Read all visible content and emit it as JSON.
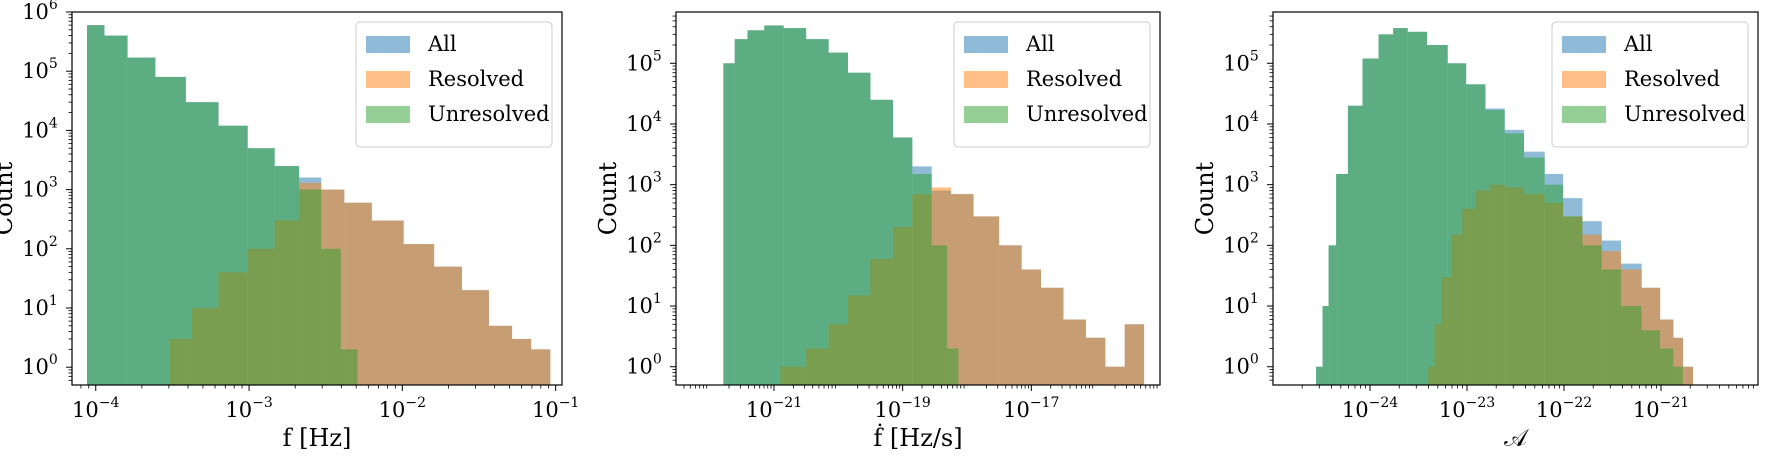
{
  "legend_labels": [
    "All",
    "Resolved",
    "Unresolved"
  ],
  "colors": {
    "All": "#1f77b4",
    "Resolved": "#ff7f0e",
    "Unresolved": "#2ca02c",
    "alpha": 0.5
  },
  "chart_data": [
    {
      "type": "histogram",
      "xscale": "log",
      "yscale": "log",
      "xlabel": "f [Hz]",
      "ylabel": "Count",
      "xlim": [
        7e-05,
        0.11
      ],
      "ylim": [
        0.5,
        1000000
      ],
      "xticks": [
        {
          "v": 0.0001,
          "label": "10",
          "exp": "−4"
        },
        {
          "v": 0.001,
          "label": "10",
          "exp": "−3"
        },
        {
          "v": 0.01,
          "label": "10",
          "exp": "−2"
        },
        {
          "v": 0.1,
          "label": "10",
          "exp": "−1"
        }
      ],
      "yticks": [
        {
          "v": 1,
          "label": "10",
          "exp": "0"
        },
        {
          "v": 10,
          "label": "10",
          "exp": "1"
        },
        {
          "v": 100,
          "label": "10",
          "exp": "2"
        },
        {
          "v": 1000,
          "label": "10",
          "exp": "3"
        },
        {
          "v": 10000,
          "label": "10",
          "exp": "4"
        },
        {
          "v": 100000,
          "label": "10",
          "exp": "5"
        },
        {
          "v": 1000000,
          "label": "10",
          "exp": "6"
        }
      ],
      "legend_position": "top-right",
      "series": [
        {
          "name": "All",
          "x": [
            0.0001,
            0.00013,
            0.0002,
            0.0003,
            0.0005,
            0.0008,
            0.0012,
            0.0018,
            0.0025,
            0.0035,
            0.005,
            0.008,
            0.013,
            0.02,
            0.03,
            0.045,
            0.06,
            0.08
          ],
          "values": [
            600000,
            400000,
            170000,
            80000,
            30000,
            12000,
            5000,
            2500,
            1600,
            1000,
            600,
            300,
            120,
            50,
            20,
            5,
            3,
            2
          ]
        },
        {
          "name": "Resolved",
          "x": [
            0.00036,
            0.0005,
            0.0008,
            0.0012,
            0.0018,
            0.0025,
            0.0035,
            0.005,
            0.008,
            0.013,
            0.02,
            0.03,
            0.045,
            0.06,
            0.08
          ],
          "values": [
            3,
            10,
            40,
            100,
            300,
            1300,
            1000,
            600,
            300,
            120,
            50,
            20,
            5,
            3,
            2
          ]
        },
        {
          "name": "Unresolved",
          "x": [
            0.0001,
            0.00013,
            0.0002,
            0.0003,
            0.0005,
            0.0008,
            0.0012,
            0.0018,
            0.0025,
            0.0035,
            0.0045
          ],
          "values": [
            600000,
            400000,
            170000,
            80000,
            30000,
            12000,
            5000,
            2500,
            1000,
            100,
            2
          ]
        }
      ]
    },
    {
      "type": "histogram",
      "xscale": "log",
      "yscale": "log",
      "xlabel": "ḟ [Hz/s]",
      "ylabel": "Count",
      "xlim": [
        3e-23,
        1e-15
      ],
      "ylim": [
        0.5,
        700000
      ],
      "xticks": [
        {
          "v": 1e-21,
          "label": "10",
          "exp": "−21"
        },
        {
          "v": 1e-19,
          "label": "10",
          "exp": "−19"
        },
        {
          "v": 1e-17,
          "label": "10",
          "exp": "−17"
        }
      ],
      "yticks": [
        {
          "v": 1,
          "label": "10",
          "exp": "0"
        },
        {
          "v": 10,
          "label": "10",
          "exp": "1"
        },
        {
          "v": 100,
          "label": "10",
          "exp": "2"
        },
        {
          "v": 1000,
          "label": "10",
          "exp": "3"
        },
        {
          "v": 10000,
          "label": "10",
          "exp": "4"
        },
        {
          "v": 100000,
          "label": "10",
          "exp": "5"
        }
      ],
      "legend_position": "top-right",
      "series": [
        {
          "name": "All",
          "x": [
            2e-22,
            3e-22,
            5e-22,
            1e-21,
            2e-21,
            5e-21,
            1e-20,
            2e-20,
            5e-20,
            1e-19,
            2e-19,
            4e-19,
            8e-19,
            2e-18,
            5e-18,
            1e-17,
            2e-17,
            5e-17,
            1e-16,
            2e-16,
            4e-16
          ],
          "values": [
            100000,
            250000,
            350000,
            420000,
            380000,
            250000,
            150000,
            70000,
            25000,
            6000,
            2000,
            800,
            700,
            300,
            100,
            40,
            20,
            6,
            3,
            1,
            5
          ]
        },
        {
          "name": "Resolved",
          "x": [
            2e-21,
            5e-21,
            1e-20,
            2e-20,
            5e-20,
            1e-19,
            2e-19,
            4e-19,
            8e-19,
            2e-18,
            5e-18,
            1e-17,
            2e-17,
            5e-17,
            1e-16,
            2e-16,
            4e-16
          ],
          "values": [
            1,
            2,
            5,
            15,
            60,
            200,
            700,
            900,
            700,
            300,
            100,
            40,
            20,
            6,
            3,
            1,
            5
          ]
        },
        {
          "name": "Unresolved",
          "x": [
            2e-22,
            3e-22,
            5e-22,
            1e-21,
            2e-21,
            5e-21,
            1e-20,
            2e-20,
            5e-20,
            1e-19,
            2e-19,
            4e-19,
            6e-19
          ],
          "values": [
            100000,
            250000,
            350000,
            420000,
            380000,
            250000,
            150000,
            70000,
            25000,
            6000,
            1500,
            100,
            2
          ]
        }
      ]
    },
    {
      "type": "histogram",
      "xscale": "log",
      "yscale": "log",
      "xlabel": "𝒜",
      "ylabel": "Count",
      "xlim": [
        1e-25,
        1e-20
      ],
      "ylim": [
        0.5,
        700000
      ],
      "xticks": [
        {
          "v": 1e-24,
          "label": "10",
          "exp": "−24"
        },
        {
          "v": 1e-23,
          "label": "10",
          "exp": "−23"
        },
        {
          "v": 1e-22,
          "label": "10",
          "exp": "−22"
        },
        {
          "v": 1e-21,
          "label": "10",
          "exp": "−21"
        }
      ],
      "yticks": [
        {
          "v": 1,
          "label": "10",
          "exp": "0"
        },
        {
          "v": 10,
          "label": "10",
          "exp": "1"
        },
        {
          "v": 100,
          "label": "10",
          "exp": "2"
        },
        {
          "v": 1000,
          "label": "10",
          "exp": "3"
        },
        {
          "v": 10000,
          "label": "10",
          "exp": "4"
        },
        {
          "v": 100000,
          "label": "10",
          "exp": "5"
        }
      ],
      "legend_position": "top-right",
      "series": [
        {
          "name": "All",
          "x": [
            3e-25,
            3.5e-25,
            4e-25,
            5e-25,
            7e-25,
            1e-24,
            1.5e-24,
            2e-24,
            3e-24,
            5e-24,
            8e-24,
            1.2e-23,
            2e-23,
            3e-23,
            5e-23,
            8e-23,
            1.2e-22,
            2e-22,
            3e-22,
            5e-22,
            8e-22,
            1.2e-21,
            1.5e-21,
            1.9e-21
          ],
          "values": [
            1,
            10,
            100,
            1500,
            20000,
            120000,
            300000,
            380000,
            330000,
            200000,
            100000,
            45000,
            18000,
            8000,
            3500,
            1500,
            600,
            250,
            120,
            50,
            20,
            6,
            3,
            1
          ]
        },
        {
          "name": "Resolved",
          "x": [
            4.3e-24,
            5e-24,
            6e-24,
            8e-24,
            1e-23,
            1.5e-23,
            2e-23,
            3e-23,
            5e-23,
            8e-23,
            1.2e-22,
            2e-22,
            3e-22,
            5e-22,
            8e-22,
            1.2e-21,
            1.5e-21,
            1.9e-21
          ],
          "values": [
            1,
            5,
            30,
            150,
            400,
            800,
            1000,
            900,
            700,
            500,
            300,
            150,
            80,
            40,
            20,
            6,
            3,
            1
          ]
        },
        {
          "name": "Unresolved",
          "x": [
            3e-25,
            3.5e-25,
            4e-25,
            5e-25,
            7e-25,
            1e-24,
            1.5e-24,
            2e-24,
            3e-24,
            5e-24,
            8e-24,
            1.2e-23,
            2e-23,
            3e-23,
            5e-23,
            8e-23,
            1.2e-22,
            2e-22,
            3e-22,
            5e-22,
            8e-22,
            1.2e-21,
            1.5e-21
          ],
          "values": [
            1,
            10,
            100,
            1500,
            20000,
            120000,
            300000,
            380000,
            330000,
            200000,
            100000,
            45000,
            17000,
            7000,
            2800,
            1000,
            300,
            100,
            40,
            10,
            4,
            2,
            1
          ]
        }
      ]
    }
  ]
}
